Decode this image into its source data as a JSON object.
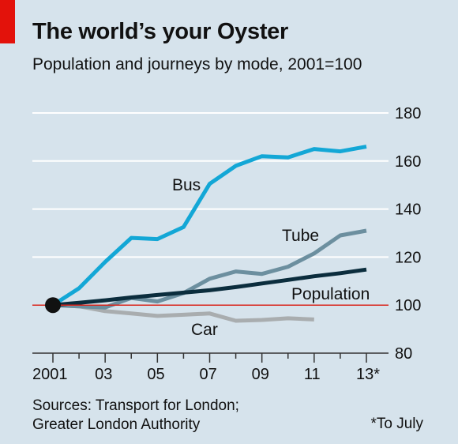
{
  "header": {
    "title": "The world’s your Oyster",
    "subtitle": "Population and journeys by mode, 2001=100"
  },
  "footer": {
    "sources_line1": "Sources: Transport for London;",
    "sources_line2": "Greater London Authority",
    "footnote": "*To July"
  },
  "colors": {
    "background": "#d6e3ec",
    "accent": "#e3120b",
    "bus": "#13a7d6",
    "tube": "#6c8f9f",
    "population": "#0b2d3d",
    "car": "#a9adaf",
    "baseline": "#d9241b",
    "grid": "#ffffff"
  },
  "chart_data": {
    "type": "line",
    "title": "The world’s your Oyster",
    "subtitle": "Population and journeys by mode, 2001=100",
    "x_tick_labels": [
      {
        "x": 2001,
        "label": "2001"
      },
      {
        "x": 2003,
        "label": "03"
      },
      {
        "x": 2005,
        "label": "05"
      },
      {
        "x": 2007,
        "label": "07"
      },
      {
        "x": 2009,
        "label": "09"
      },
      {
        "x": 2011,
        "label": "11"
      },
      {
        "x": 2013,
        "label": "13*"
      }
    ],
    "y_ticks": [
      80,
      100,
      120,
      140,
      160,
      180
    ],
    "xlim": [
      2000.5,
      2013.5
    ],
    "ylim": [
      80,
      180
    ],
    "baseline": 100,
    "grid": "horizontal",
    "series": [
      {
        "name": "Bus",
        "color": "#13a7d6",
        "x": [
          2001,
          2002,
          2003,
          2004,
          2005,
          2006,
          2007,
          2008,
          2009,
          2010,
          2011,
          2012,
          2013
        ],
        "y": [
          100,
          107,
          118,
          128,
          127.5,
          132.5,
          150.5,
          158,
          162,
          161.5,
          165,
          164,
          166
        ]
      },
      {
        "name": "Tube",
        "color": "#6c8f9f",
        "x": [
          2001,
          2002,
          2003,
          2004,
          2005,
          2006,
          2007,
          2008,
          2009,
          2010,
          2011,
          2012,
          2013
        ],
        "y": [
          100,
          99.5,
          99,
          103,
          101.5,
          105,
          111,
          114,
          113,
          116,
          121.5,
          129,
          131
        ]
      },
      {
        "name": "Population",
        "color": "#0b2d3d",
        "x": [
          2001,
          2002,
          2003,
          2004,
          2005,
          2006,
          2007,
          2008,
          2009,
          2010,
          2011,
          2012,
          2013
        ],
        "y": [
          100,
          101,
          102,
          103.2,
          104.2,
          105.2,
          106.2,
          107.5,
          109,
          110.5,
          112,
          113.3,
          114.8
        ]
      },
      {
        "name": "Car",
        "color": "#a9adaf",
        "x": [
          2001,
          2002,
          2003,
          2004,
          2005,
          2006,
          2007,
          2008,
          2009,
          2010,
          2011
        ],
        "y": [
          100,
          99.5,
          97.5,
          96.5,
          95.5,
          96,
          96.5,
          93.5,
          93.8,
          94.5,
          94
        ]
      }
    ],
    "annotations": [
      {
        "text": "Bus",
        "series": "Bus"
      },
      {
        "text": "Tube",
        "series": "Tube"
      },
      {
        "text": "Population",
        "series": "Population"
      },
      {
        "text": "Car",
        "series": "Car"
      }
    ],
    "start_marker": {
      "x": 2001,
      "y": 100
    }
  }
}
